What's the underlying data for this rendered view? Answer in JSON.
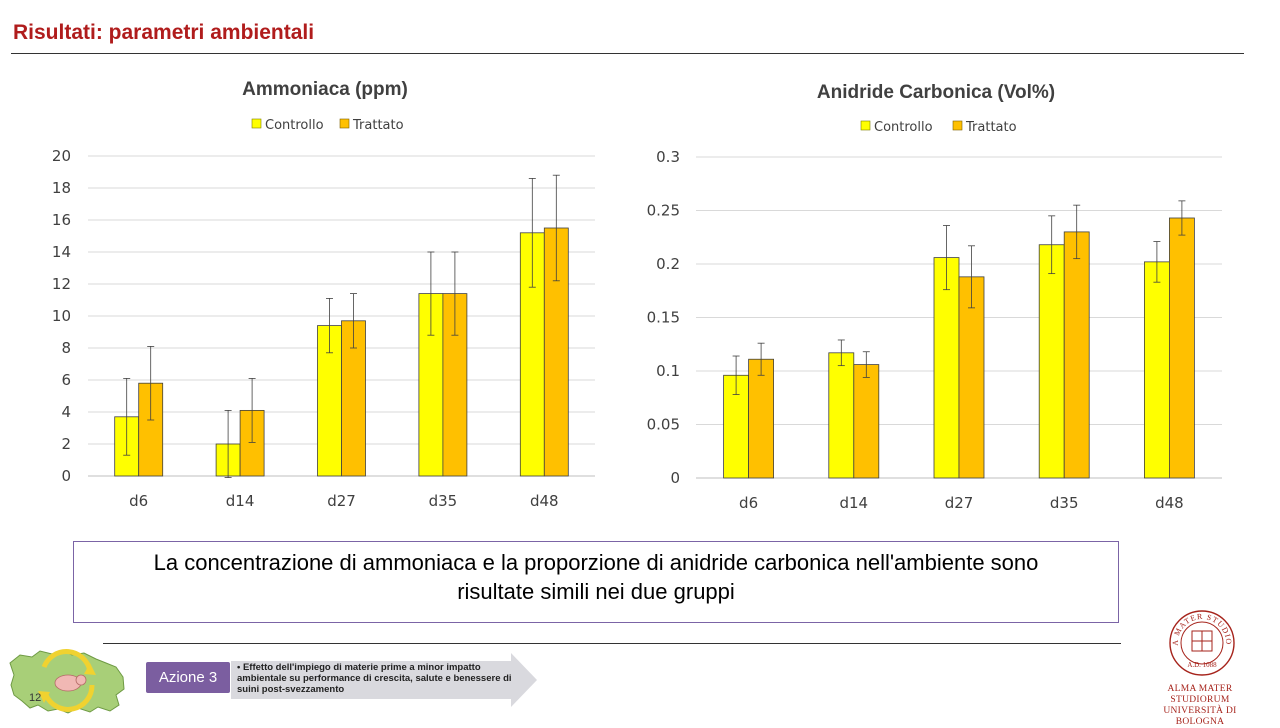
{
  "slide_title": "Risultati: parametri ambientali",
  "colors": {
    "title": "#b01c1c",
    "controllo": "#ffff00",
    "trattato": "#ffc000",
    "box_border": "#7b64a6",
    "badge": "#7b5ea0",
    "unibo": "#a6231b"
  },
  "chart_data": [
    {
      "type": "bar",
      "title": "Ammoniaca (ppm)",
      "categories": [
        "d6",
        "d14",
        "d27",
        "d35",
        "d48"
      ],
      "series": [
        {
          "name": "Controllo",
          "values": [
            3.7,
            2.0,
            9.4,
            11.4,
            15.2
          ],
          "errors": [
            2.4,
            2.1,
            1.7,
            2.6,
            3.4
          ],
          "color": "#ffff00"
        },
        {
          "name": "Trattato",
          "values": [
            5.8,
            4.1,
            9.7,
            11.4,
            15.5
          ],
          "errors": [
            2.3,
            2.0,
            1.7,
            2.6,
            3.3
          ],
          "color": "#ffc000"
        }
      ],
      "yticks": [
        "0",
        "2",
        "4",
        "6",
        "8",
        "10",
        "12",
        "14",
        "16",
        "18",
        "20"
      ],
      "ylim": [
        0,
        20
      ],
      "grid": true,
      "legend": "top"
    },
    {
      "type": "bar",
      "title": "Anidride Carbonica (Vol%)",
      "categories": [
        "d6",
        "d14",
        "d27",
        "d35",
        "d48"
      ],
      "series": [
        {
          "name": "Controllo",
          "values": [
            0.096,
            0.117,
            0.206,
            0.218,
            0.202
          ],
          "errors": [
            0.018,
            0.012,
            0.03,
            0.027,
            0.019
          ],
          "color": "#ffff00"
        },
        {
          "name": "Trattato",
          "values": [
            0.111,
            0.106,
            0.188,
            0.23,
            0.243
          ],
          "errors": [
            0.015,
            0.012,
            0.029,
            0.025,
            0.016
          ],
          "color": "#ffc000"
        }
      ],
      "yticks": [
        "0",
        "0.05",
        "0.1",
        "0.15",
        "0.2",
        "0.25",
        "0.3"
      ],
      "ylim": [
        0,
        0.3
      ],
      "grid": true,
      "legend": "top"
    }
  ],
  "conclusion": {
    "line1": "La concentrazione di ammoniaca e la proporzione di anidride carbonica nell'ambiente sono",
    "line2": "risultate simili nei due gruppi"
  },
  "footer": {
    "page_number": "12",
    "azione_label": "Azione 3",
    "azione_text": "Effetto dell'impiego di materie prime a minor impatto ambientale su performance di crescita, salute e benessere di suini post-svezzamento",
    "university_line1": "ALMA MATER STUDIORUM",
    "university_line2": "UNIVERSITÀ DI BOLOGNA",
    "seal_motto": "ALMA MATER STUDIORUM",
    "seal_year": "A.D. 1088"
  }
}
